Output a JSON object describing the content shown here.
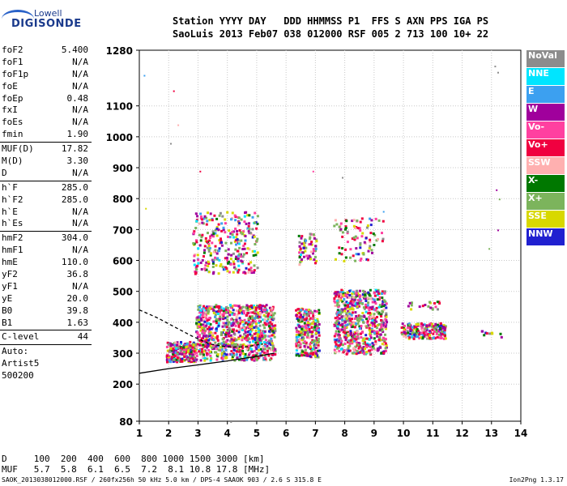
{
  "logo": {
    "line1": "Lowell",
    "line2": "DIGISONDE"
  },
  "header": {
    "line1": "Station YYYY DAY   DDD HHMMSS P1  FFS S AXN PPS IGA PS",
    "line2": "SaoLuis 2013 Feb07 038 012000 RSF 005 2 713 100 10+ 22"
  },
  "params": [
    {
      "name": "foF2",
      "value": "5.400"
    },
    {
      "name": "foF1",
      "value": "N/A"
    },
    {
      "name": "foF1p",
      "value": "N/A"
    },
    {
      "name": "foE",
      "value": "N/A"
    },
    {
      "name": "foEp",
      "value": "0.48"
    },
    {
      "name": "fxI",
      "value": "N/A"
    },
    {
      "name": "foEs",
      "value": "N/A"
    },
    {
      "name": "fmin",
      "value": "1.90"
    },
    {
      "sep": true
    },
    {
      "name": "MUF(D)",
      "value": "17.82"
    },
    {
      "name": "M(D)",
      "value": "3.30"
    },
    {
      "name": "D",
      "value": "N/A"
    },
    {
      "sep": true
    },
    {
      "name": "h`F",
      "value": "285.0"
    },
    {
      "name": "h`F2",
      "value": "285.0"
    },
    {
      "name": "h`E",
      "value": "N/A"
    },
    {
      "name": "h`Es",
      "value": "N/A"
    },
    {
      "sep": true
    },
    {
      "name": "hmF2",
      "value": "304.0"
    },
    {
      "name": "hmF1",
      "value": "N/A"
    },
    {
      "name": "hmE",
      "value": "110.0"
    },
    {
      "name": "yF2",
      "value": "36.8"
    },
    {
      "name": "yF1",
      "value": "N/A"
    },
    {
      "name": "yE",
      "value": "20.0"
    },
    {
      "name": "B0",
      "value": "39.8"
    },
    {
      "name": "B1",
      "value": "1.63"
    },
    {
      "sep": true
    },
    {
      "name": "C-level",
      "value": "44"
    },
    {
      "sep": true
    },
    {
      "free": "Auto:"
    },
    {
      "free": "Artist5"
    },
    {
      "free": "500200"
    }
  ],
  "legend": [
    {
      "label": "NoVal",
      "color": "#8c8c8c"
    },
    {
      "label": "NNE",
      "color": "#00e5ff"
    },
    {
      "label": "E",
      "color": "#3ca0f0"
    },
    {
      "label": "W",
      "color": "#a0009c"
    },
    {
      "label": "Vo-",
      "color": "#ff40a0"
    },
    {
      "label": "Vo+",
      "color": "#f00040"
    },
    {
      "label": "SSW",
      "color": "#ffb0b0"
    },
    {
      "label": "X-",
      "color": "#007800"
    },
    {
      "label": "X+",
      "color": "#7cb45c"
    },
    {
      "label": "SSE",
      "color": "#d8d800"
    },
    {
      "label": "NNW",
      "color": "#2020d0"
    }
  ],
  "chart_data": {
    "type": "scatter",
    "x_ticks": [
      "1",
      "2",
      "3",
      "4",
      "5",
      "6",
      "7",
      "8",
      "9",
      "10",
      "11",
      "12",
      "13",
      "14"
    ],
    "y_ticks": [
      "80",
      "200",
      "300",
      "400",
      "500",
      "600",
      "700",
      "800",
      "900",
      "1000",
      "1100",
      "1280"
    ],
    "xlim": [
      1,
      14
    ],
    "ylim": [
      80,
      1280
    ],
    "grid": true,
    "clusters": [
      {
        "xmin": 1.9,
        "xmax": 2.9,
        "ymin": 275,
        "ymax": 340,
        "n": 260
      },
      {
        "xmin": 2.9,
        "xmax": 5.6,
        "ymin": 280,
        "ymax": 460,
        "n": 900
      },
      {
        "xmin": 2.8,
        "xmax": 5.0,
        "ymin": 560,
        "ymax": 760,
        "n": 300
      },
      {
        "xmin": 6.3,
        "xmax": 7.1,
        "ymin": 290,
        "ymax": 450,
        "n": 280
      },
      {
        "xmin": 6.4,
        "xmax": 7.0,
        "ymin": 590,
        "ymax": 690,
        "n": 60
      },
      {
        "xmin": 7.6,
        "xmax": 9.4,
        "ymin": 300,
        "ymax": 510,
        "n": 650
      },
      {
        "xmin": 7.6,
        "xmax": 9.3,
        "ymin": 600,
        "ymax": 740,
        "n": 90
      },
      {
        "xmin": 9.9,
        "xmax": 11.4,
        "ymin": 350,
        "ymax": 400,
        "n": 190
      },
      {
        "xmin": 10.1,
        "xmax": 11.2,
        "ymin": 445,
        "ymax": 470,
        "n": 20
      },
      {
        "xmin": 12.6,
        "xmax": 13.4,
        "ymin": 355,
        "ymax": 375,
        "n": 10
      }
    ],
    "curves": [
      {
        "name": "lower",
        "points": [
          [
            1,
            235
          ],
          [
            2,
            250
          ],
          [
            3,
            262
          ],
          [
            4,
            275
          ],
          [
            5,
            290
          ],
          [
            5.6,
            300
          ]
        ]
      },
      {
        "name": "upper",
        "points": [
          [
            1,
            440
          ],
          [
            1.6,
            415
          ],
          [
            2.2,
            385
          ],
          [
            2.8,
            355
          ],
          [
            3.4,
            330
          ],
          [
            4,
            320
          ],
          [
            4.6,
            320
          ],
          [
            5.2,
            330
          ]
        ]
      }
    ]
  },
  "footer": {
    "d_row": "D     100  200  400  600  800 1000 1500 3000 [km]",
    "muf_row": "MUF   5.7  5.8  6.1  6.5  7.2  8.1 10.8 17.8 [MHz]",
    "file_info": "SAOK_2013038012000.RSF / 260fx256h 50 kHz 5.0 km / DPS-4 SAAOK 903 / 2.6 S 315.8 E",
    "version": "Ion2Png 1.3.17"
  }
}
